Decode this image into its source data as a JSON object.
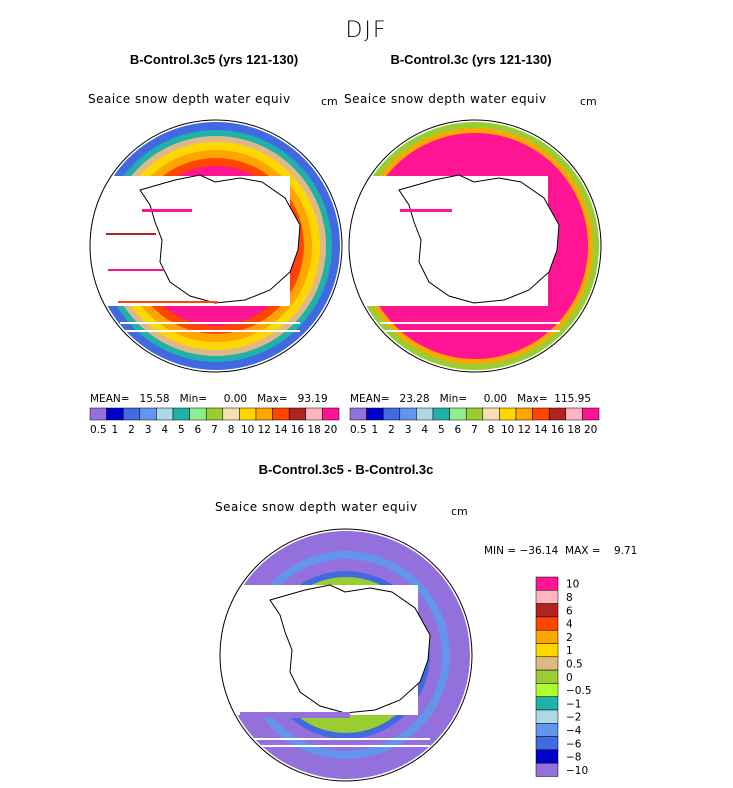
{
  "season": "DJF",
  "colors": {
    "ramp": [
      "#9370db",
      "#0000cd",
      "#4169e1",
      "#6495ed",
      "#add8e6",
      "#20b2aa",
      "#90ee90",
      "#9acd32",
      "#f5deb3",
      "#ffd700",
      "#ffa500",
      "#ff4500",
      "#b22222",
      "#ffb6c1",
      "#ff1493"
    ],
    "diff_ramp": [
      "#ff1493",
      "#ffb6c1",
      "#b22222",
      "#ff4500",
      "#ffa500",
      "#ffd700",
      "#deb887",
      "#9acd32",
      "#adff2f",
      "#20b2aa",
      "#add8e6",
      "#6495ed",
      "#4169e1",
      "#0000cd",
      "#9370db"
    ]
  },
  "chart_data": [
    {
      "type": "heatmap",
      "title": "B-Control.3c5 (yrs 121-130)",
      "variable": "Seaice snow depth water equiv",
      "units": "cm",
      "stats": {
        "mean": "15.58",
        "min": "0.00",
        "max": "93.19"
      },
      "stats_text": "MEAN=   15.58   Min=     0.00   Max=   93.19",
      "colorbar_levels": [
        "0.5",
        "1",
        "2",
        "3",
        "4",
        "5",
        "6",
        "7",
        "8",
        "10",
        "12",
        "14",
        "16",
        "18",
        "20"
      ],
      "ring_pattern": "outer ring blue/green, middle yellow/orange, inner red and magenta near coast"
    },
    {
      "type": "heatmap",
      "title": "B-Control.3c (yrs 121-130)",
      "variable": "Seaice snow depth water equiv",
      "units": "cm",
      "stats": {
        "mean": "23.28",
        "min": "0.00",
        "max": "115.95"
      },
      "stats_text": "MEAN=   23.28   Min=     0.00   Max=  115.95",
      "colorbar_levels": [
        "0.5",
        "1",
        "2",
        "3",
        "4",
        "5",
        "6",
        "7",
        "8",
        "10",
        "12",
        "14",
        "16",
        "18",
        "20"
      ],
      "ring_pattern": "mostly magenta (>20) with thin orange/green outer fringe"
    },
    {
      "type": "heatmap",
      "title": "B-Control.3c5 - B-Control.3c",
      "variable": "Seaice snow depth water equiv",
      "units": "cm",
      "stats": {
        "min": "-36.14",
        "max": "9.71"
      },
      "stats_text": "MIN = −36.14  MAX =    9.71",
      "colorbar_levels": [
        "10",
        "8",
        "6",
        "4",
        "2",
        "1",
        "0.5",
        "0",
        "−0.5",
        "−1",
        "−2",
        "−4",
        "−6",
        "−8",
        "−10"
      ],
      "ring_pattern": "mostly purple (below -10) and blue, with green/teal near coast"
    }
  ]
}
